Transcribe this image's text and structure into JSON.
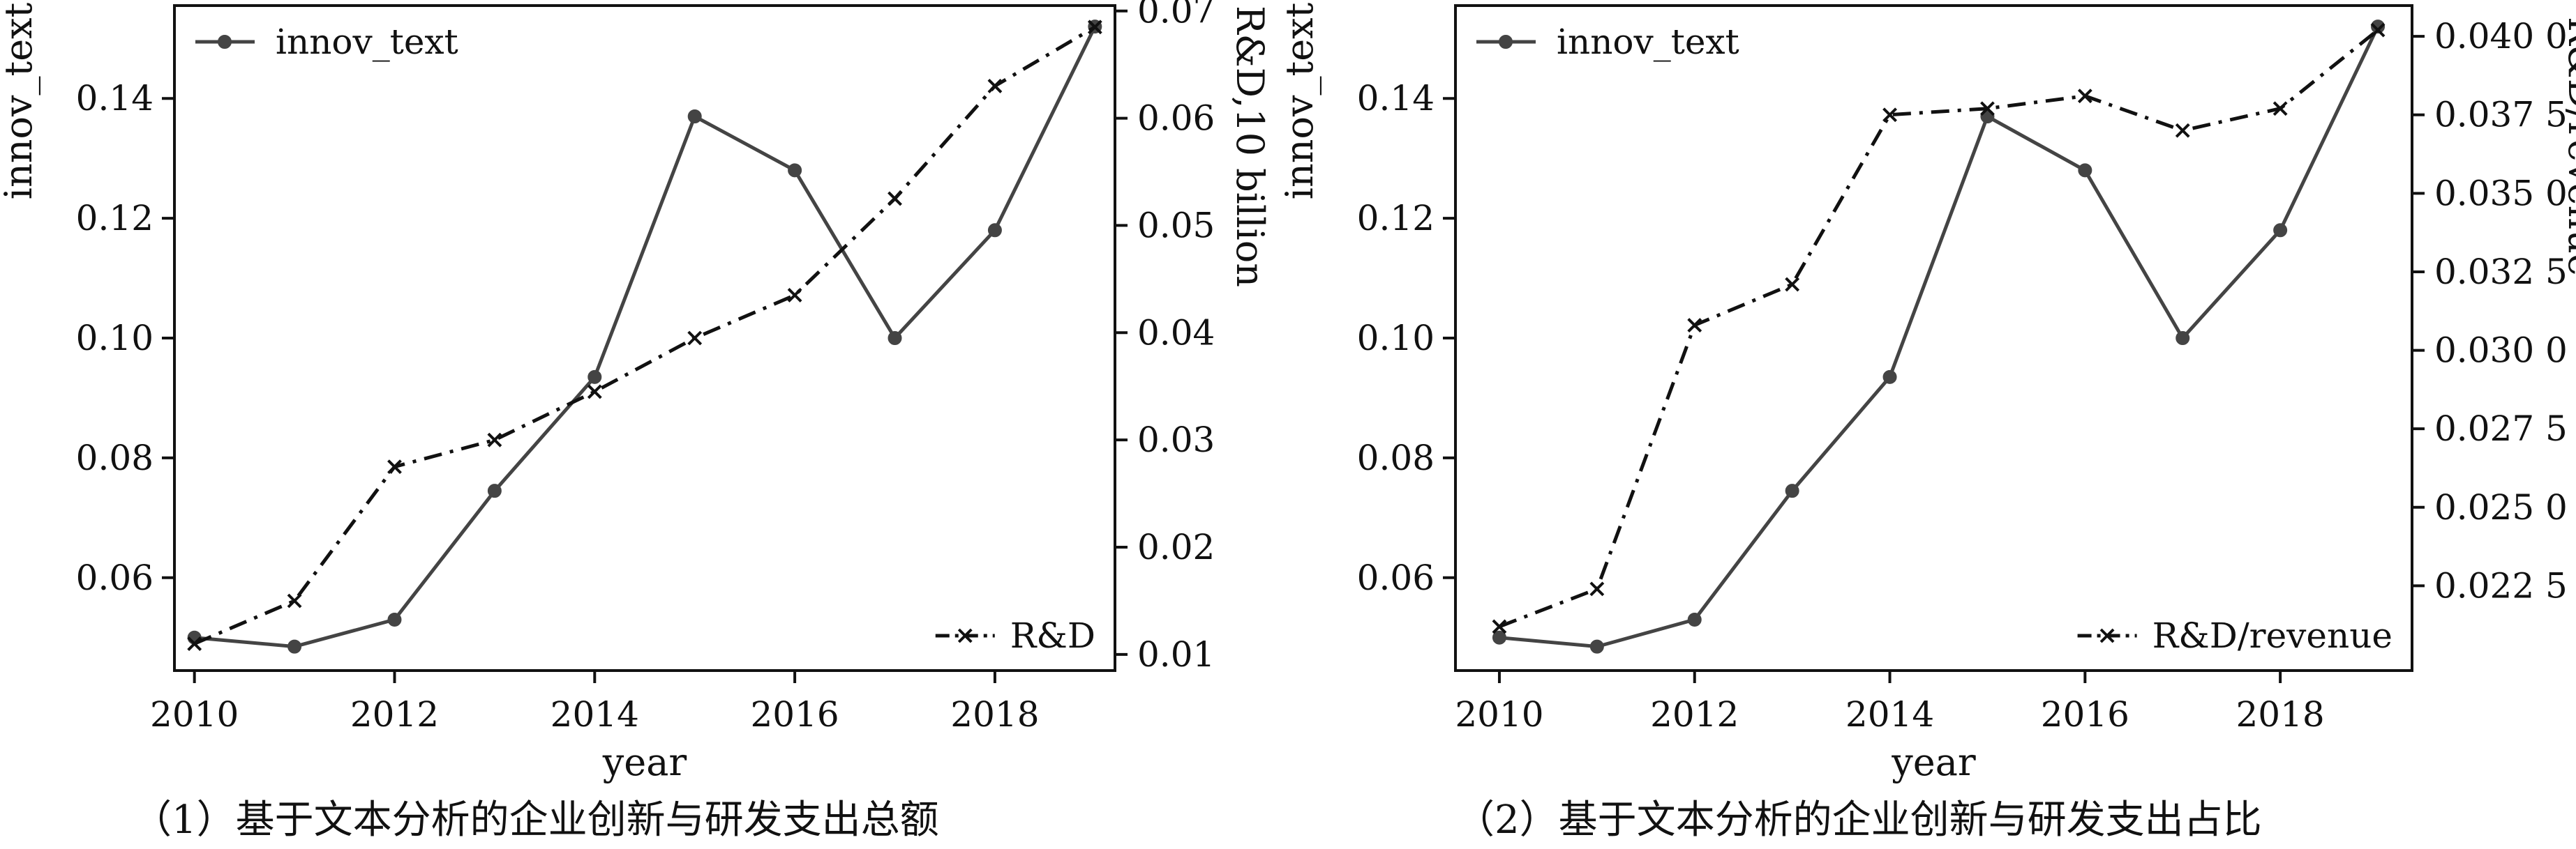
{
  "charts": [
    {
      "chart_data": {
        "type": "line",
        "x": [
          2010,
          2011,
          2012,
          2013,
          2014,
          2015,
          2016,
          2017,
          2018,
          2019
        ],
        "xlabel": "year",
        "xticks": [
          2010,
          2012,
          2014,
          2016,
          2018
        ],
        "xlim": [
          2009.8,
          2019.2
        ],
        "left_axis": {
          "label": "innov_text",
          "ylim": [
            0.0445,
            0.1555
          ],
          "ticks": [
            0.06,
            0.08,
            0.1,
            0.12,
            0.14
          ],
          "tick_labels": [
            "0.06",
            "0.08",
            "0.10",
            "0.12",
            "0.14"
          ]
        },
        "right_axis": {
          "label": "R&D,10 billion",
          "ylim": [
            0.0085,
            0.0705
          ],
          "ticks": [
            0.01,
            0.02,
            0.03,
            0.04,
            0.05,
            0.06,
            0.07
          ],
          "tick_labels": [
            "0.01",
            "0.02",
            "0.03",
            "0.04",
            "0.05",
            "0.06",
            "0.07"
          ]
        },
        "series": [
          {
            "name": "innov_text",
            "axis": "left",
            "style": "solid",
            "marker": "circle",
            "color": "#444444",
            "values": [
              0.05,
              0.0485,
              0.053,
              0.0745,
              0.0935,
              0.137,
              0.128,
              0.1,
              0.118,
              0.152
            ]
          },
          {
            "name": "R&D",
            "axis": "right",
            "style": "dashdot",
            "marker": "x",
            "color": "#111111",
            "values": [
              0.011,
              0.015,
              0.0275,
              0.03,
              0.0345,
              0.0395,
              0.0435,
              0.0525,
              0.063,
              0.0685
            ]
          }
        ],
        "legend": [
          "top-left",
          "bottom-right"
        ],
        "grid": false
      },
      "caption": "（1）基于文本分析的企业创新与研发支出总额"
    },
    {
      "chart_data": {
        "type": "line",
        "x": [
          2010,
          2011,
          2012,
          2013,
          2014,
          2015,
          2016,
          2017,
          2018,
          2019
        ],
        "xlabel": "year",
        "xticks": [
          2010,
          2012,
          2014,
          2016,
          2018
        ],
        "xlim": [
          2009.55,
          2019.35
        ],
        "left_axis": {
          "label": "innov_text",
          "ylim": [
            0.0445,
            0.1555
          ],
          "ticks": [
            0.06,
            0.08,
            0.1,
            0.12,
            0.14
          ],
          "tick_labels": [
            "0.06",
            "0.08",
            "0.10",
            "0.12",
            "0.14"
          ]
        },
        "right_axis": {
          "label": "R&D/revenue",
          "ylim": [
            0.0198,
            0.04098
          ],
          "ticks": [
            0.0225,
            0.025,
            0.0275,
            0.03,
            0.0325,
            0.035,
            0.0375,
            0.04
          ],
          "tick_labels": [
            "0.022 5",
            "0.025 0",
            "0.027 5",
            "0.030 0",
            "0.032 5",
            "0.035 0",
            "0.037 5",
            "0.040 0"
          ]
        },
        "series": [
          {
            "name": "innov_text",
            "axis": "left",
            "style": "solid",
            "marker": "circle",
            "color": "#444444",
            "values": [
              0.05,
              0.0485,
              0.053,
              0.0745,
              0.0935,
              0.137,
              0.128,
              0.1,
              0.118,
              0.152
            ]
          },
          {
            "name": "R&D/revenue",
            "axis": "right",
            "style": "dashdot",
            "marker": "x",
            "color": "#111111",
            "values": [
              0.0212,
              0.0224,
              0.0308,
              0.0321,
              0.0375,
              0.0377,
              0.0381,
              0.037,
              0.0377,
              0.0402
            ]
          }
        ],
        "legend": [
          "top-left",
          "bottom-right"
        ],
        "grid": false
      },
      "caption": "（2）基于文本分析的企业创新与研发支出占比"
    }
  ]
}
